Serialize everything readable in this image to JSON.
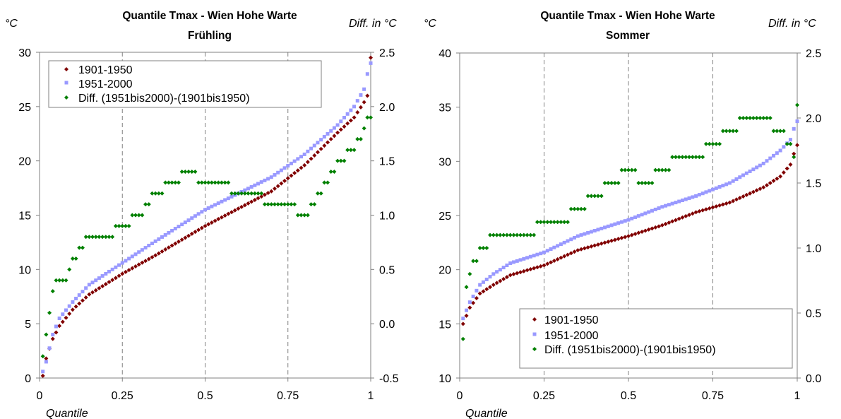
{
  "chart_data": [
    {
      "type": "scatter",
      "title": "Quantile Tmax - Wien Hohe Warte",
      "subtitle": "Frühling",
      "xlabel": "Quantile",
      "ylabel": "°C",
      "y2label": "Diff. in °C",
      "xlim": [
        0,
        1
      ],
      "ylim": [
        0,
        30
      ],
      "y2lim": [
        -0.5,
        2.5
      ],
      "xticks": [
        "0",
        "0.25",
        "0.5",
        "0.75",
        "1"
      ],
      "yticks": [
        "0",
        "5",
        "10",
        "15",
        "20",
        "25",
        "30"
      ],
      "y2ticks": [
        "-0.5",
        "0.0",
        "0.5",
        "1.0",
        "1.5",
        "2.0",
        "2.5"
      ],
      "grid": "vertical dashed at 0.25, 0.5, 0.75",
      "legend_position": "top-left",
      "series": [
        {
          "name": "1901-1950",
          "axis": "left",
          "color": "#800000",
          "marker": "diamond",
          "curve": [
            [
              0.01,
              0.2
            ],
            [
              0.02,
              1.8
            ],
            [
              0.04,
              3.6
            ],
            [
              0.06,
              4.8
            ],
            [
              0.1,
              6.3
            ],
            [
              0.15,
              7.7
            ],
            [
              0.25,
              9.6
            ],
            [
              0.35,
              11.3
            ],
            [
              0.5,
              14.0
            ],
            [
              0.6,
              15.6
            ],
            [
              0.7,
              17.2
            ],
            [
              0.8,
              19.6
            ],
            [
              0.9,
              22.6
            ],
            [
              0.95,
              24.0
            ],
            [
              0.98,
              25.4
            ],
            [
              0.99,
              26.0
            ],
            [
              1.0,
              29.5
            ]
          ]
        },
        {
          "name": "1951-2000",
          "axis": "left",
          "color": "#9999ff",
          "marker": "square",
          "curve": [
            [
              0.01,
              0.6
            ],
            [
              0.02,
              1.5
            ],
            [
              0.04,
              4.0
            ],
            [
              0.06,
              5.5
            ],
            [
              0.1,
              7.0
            ],
            [
              0.15,
              8.6
            ],
            [
              0.25,
              10.6
            ],
            [
              0.35,
              12.6
            ],
            [
              0.5,
              15.5
            ],
            [
              0.6,
              17.0
            ],
            [
              0.7,
              18.5
            ],
            [
              0.8,
              20.6
            ],
            [
              0.9,
              23.3
            ],
            [
              0.95,
              25.0
            ],
            [
              0.98,
              26.6
            ],
            [
              0.99,
              28.0
            ],
            [
              1.0,
              29.0
            ]
          ]
        },
        {
          "name": "Diff. (1951bis2000)-(1901bis1950)",
          "axis": "right",
          "color": "#008000",
          "marker": "diamond",
          "curve": [
            [
              0.01,
              -0.3
            ],
            [
              0.02,
              -0.1
            ],
            [
              0.03,
              0.1
            ],
            [
              0.05,
              0.4
            ],
            [
              0.08,
              0.4
            ],
            [
              0.1,
              0.6
            ],
            [
              0.15,
              0.8
            ],
            [
              0.2,
              0.8
            ],
            [
              0.25,
              0.9
            ],
            [
              0.3,
              1.0
            ],
            [
              0.35,
              1.2
            ],
            [
              0.4,
              1.3
            ],
            [
              0.45,
              1.4
            ],
            [
              0.5,
              1.3
            ],
            [
              0.55,
              1.3
            ],
            [
              0.6,
              1.2
            ],
            [
              0.65,
              1.2
            ],
            [
              0.7,
              1.1
            ],
            [
              0.75,
              1.1
            ],
            [
              0.8,
              1.0
            ],
            [
              0.85,
              1.2
            ],
            [
              0.9,
              1.5
            ],
            [
              0.95,
              1.6
            ],
            [
              0.98,
              1.8
            ],
            [
              1.0,
              1.9
            ]
          ],
          "n_points": 100
        }
      ]
    },
    {
      "type": "scatter",
      "title": "Quantile Tmax - Wien Hohe Warte",
      "subtitle": "Sommer",
      "xlabel": "Quantile",
      "ylabel": "°C",
      "y2label": "Diff. in °C",
      "xlim": [
        0,
        1
      ],
      "ylim": [
        10,
        40
      ],
      "y2lim": [
        0.0,
        2.5
      ],
      "xticks": [
        "0",
        "0.25",
        "0.5",
        "0.75",
        "1"
      ],
      "yticks": [
        "10",
        "15",
        "20",
        "25",
        "30",
        "35",
        "40"
      ],
      "y2ticks": [
        "0.0",
        "0.5",
        "1.0",
        "1.5",
        "2.0",
        "2.5"
      ],
      "grid": "vertical dashed at 0.25, 0.5, 0.75",
      "legend_position": "bottom-right",
      "series": [
        {
          "name": "1901-1950",
          "axis": "left",
          "color": "#800000",
          "marker": "diamond",
          "curve": [
            [
              0.0,
              14.7
            ],
            [
              0.01,
              15.0
            ],
            [
              0.03,
              16.5
            ],
            [
              0.06,
              17.8
            ],
            [
              0.1,
              18.6
            ],
            [
              0.15,
              19.5
            ],
            [
              0.25,
              20.4
            ],
            [
              0.35,
              21.8
            ],
            [
              0.5,
              23.1
            ],
            [
              0.6,
              24.1
            ],
            [
              0.7,
              25.3
            ],
            [
              0.8,
              26.2
            ],
            [
              0.9,
              27.6
            ],
            [
              0.95,
              28.6
            ],
            [
              0.98,
              29.7
            ],
            [
              0.99,
              30.7
            ],
            [
              1.0,
              31.5
            ]
          ]
        },
        {
          "name": "1951-2000",
          "axis": "left",
          "color": "#9999ff",
          "marker": "square",
          "curve": [
            [
              0.0,
              15.0
            ],
            [
              0.01,
              15.5
            ],
            [
              0.03,
              17.0
            ],
            [
              0.06,
              18.6
            ],
            [
              0.1,
              19.6
            ],
            [
              0.15,
              20.6
            ],
            [
              0.25,
              21.6
            ],
            [
              0.35,
              23.1
            ],
            [
              0.5,
              24.6
            ],
            [
              0.6,
              25.8
            ],
            [
              0.7,
              26.8
            ],
            [
              0.8,
              28.0
            ],
            [
              0.9,
              29.8
            ],
            [
              0.95,
              31.0
            ],
            [
              0.98,
              32.0
            ],
            [
              0.99,
              33.0
            ],
            [
              1.0,
              33.7
            ]
          ]
        },
        {
          "name": "Diff. (1951bis2000)-(1901bis1950)",
          "axis": "right",
          "color": "#008000",
          "marker": "diamond",
          "curve": [
            [
              0.0,
              0.2
            ],
            [
              0.01,
              0.3
            ],
            [
              0.02,
              0.7
            ],
            [
              0.04,
              0.9
            ],
            [
              0.07,
              1.0
            ],
            [
              0.1,
              1.1
            ],
            [
              0.15,
              1.1
            ],
            [
              0.2,
              1.1
            ],
            [
              0.25,
              1.2
            ],
            [
              0.3,
              1.2
            ],
            [
              0.35,
              1.3
            ],
            [
              0.4,
              1.4
            ],
            [
              0.45,
              1.5
            ],
            [
              0.5,
              1.6
            ],
            [
              0.55,
              1.5
            ],
            [
              0.6,
              1.6
            ],
            [
              0.65,
              1.7
            ],
            [
              0.7,
              1.7
            ],
            [
              0.75,
              1.8
            ],
            [
              0.8,
              1.9
            ],
            [
              0.85,
              2.0
            ],
            [
              0.9,
              2.0
            ],
            [
              0.95,
              1.9
            ],
            [
              0.98,
              1.8
            ],
            [
              0.99,
              1.7
            ],
            [
              1.0,
              2.1
            ]
          ],
          "n_points": 100
        }
      ]
    }
  ]
}
